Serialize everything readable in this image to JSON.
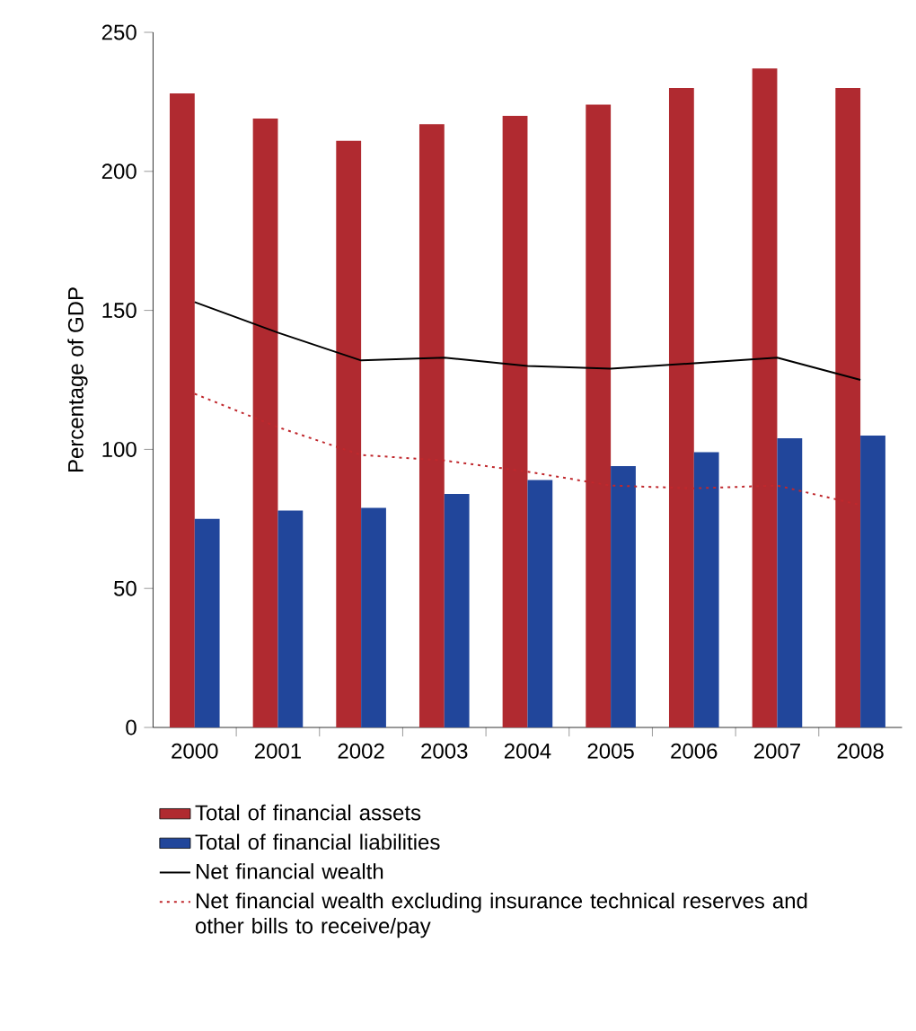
{
  "chart_data": {
    "type": "bar",
    "ylabel": "Percentage of GDP",
    "categories": [
      "2000",
      "2001",
      "2002",
      "2003",
      "2004",
      "2005",
      "2006",
      "2007",
      "2008"
    ],
    "series": [
      {
        "name": "Total of financial assets",
        "color": "#b02a30",
        "values": [
          228,
          219,
          211,
          217,
          220,
          224,
          230,
          237,
          230
        ]
      },
      {
        "name": "Total of financial liabilities",
        "color": "#21469b",
        "values": [
          75,
          78,
          79,
          84,
          89,
          94,
          99,
          104,
          105
        ]
      },
      {
        "name": "Net financial wealth",
        "type": "line",
        "color": "#000000",
        "line_style": "solid",
        "values": [
          153,
          142,
          132,
          133,
          130,
          129,
          131,
          133,
          125
        ]
      },
      {
        "name": "Net financial wealth excluding insurance technical reserves and other bills to receive/pay",
        "type": "line",
        "color": "#c0282d",
        "line_style": "dotted",
        "values": [
          120,
          108,
          98,
          96,
          92,
          87,
          86,
          87,
          80
        ]
      }
    ],
    "ylim": [
      0,
      250
    ],
    "yticks": [
      0,
      50,
      100,
      150,
      200,
      250
    ],
    "grid": false,
    "legend": "bottom",
    "marker": "none"
  }
}
